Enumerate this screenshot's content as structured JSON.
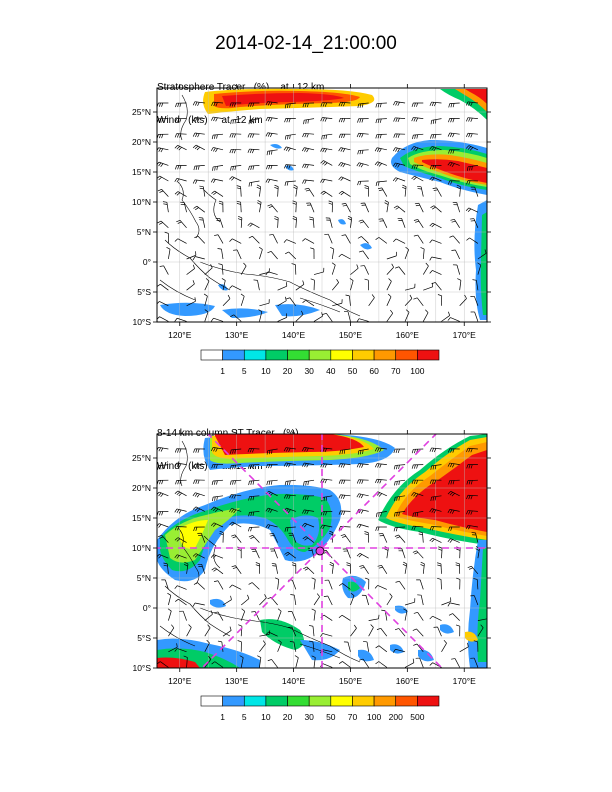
{
  "title": "2014-02-14_21:00:00",
  "panels": [
    {
      "id": "top",
      "title_line1": "Stratosphere Tracer   (%)    at   12 km",
      "title_line2": "Wind   (kts)     at  12 km",
      "lon_labels": [
        "120°E",
        "130°E",
        "140°E",
        "150°E",
        "160°E",
        "170°E"
      ],
      "lat_labels": [
        "25°N",
        "20°N",
        "15°N",
        "10°N",
        "5°N",
        "0°",
        "5°S",
        "10°S"
      ],
      "colorbar": {
        "labels": [
          "1",
          "5",
          "10",
          "20",
          "30",
          "40",
          "50",
          "60",
          "70",
          "100"
        ],
        "colors": [
          "#ffffff",
          "#3399ff",
          "#00e6e6",
          "#00cc66",
          "#33dd33",
          "#99ee33",
          "#ffff00",
          "#ffcc00",
          "#ff9900",
          "#ff5500",
          "#ee1111"
        ]
      }
    },
    {
      "id": "bottom",
      "title_line1": "8-14 km column ST Tracer   (%)",
      "title_line2": "Wind   (kts)     at  12 km",
      "lon_labels": [
        "120°E",
        "130°E",
        "140°E",
        "150°E",
        "160°E",
        "170°E"
      ],
      "lat_labels": [
        "25°N",
        "20°N",
        "15°N",
        "10°N",
        "5°N",
        "0°",
        "5°S",
        "10°S"
      ],
      "colorbar": {
        "labels": [
          "1",
          "5",
          "10",
          "20",
          "30",
          "50",
          "70",
          "100",
          "200",
          "500"
        ],
        "colors": [
          "#ffffff",
          "#3399ff",
          "#00e6e6",
          "#00cc66",
          "#33dd33",
          "#99ee33",
          "#ffff00",
          "#ffcc00",
          "#ff9900",
          "#ff5500",
          "#ee1111"
        ]
      }
    }
  ],
  "overlay_color": "#e040e0"
}
